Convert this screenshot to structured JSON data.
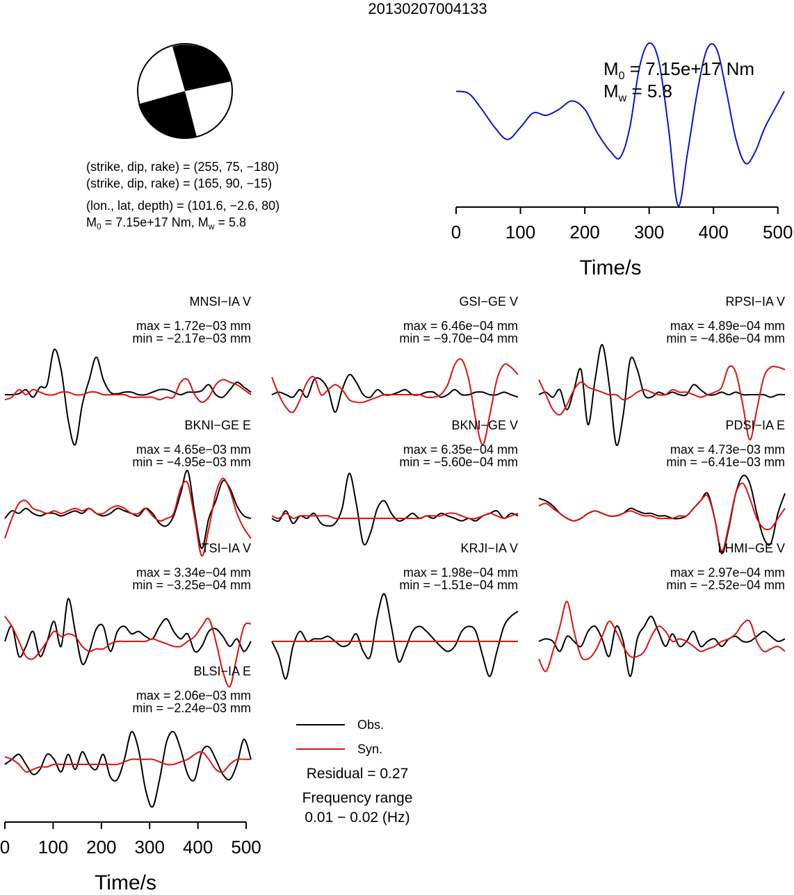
{
  "title": "20130207004133",
  "mechanism": {
    "planes": [
      "(strike, dip, rake) = (255, 75, −180)",
      "(strike, dip, rake) = (165, 90, −15)"
    ],
    "location": "(lon., lat, depth) = (101.6, −2.6, 80)",
    "moment_prefix": "M",
    "moment_sub": "0",
    "moment_rest": " = 7.15e+17 Nm, M",
    "mw_sub": "w",
    "mw_rest": " = 5.8"
  },
  "stf": {
    "m0_symbol": "M",
    "m0_sub": "0",
    "m0_value": " = 7.15e+17 Nm",
    "mw_symbol": "M",
    "mw_sub": "w",
    "mw_value": " = 5.8",
    "color": "#1010d0"
  },
  "legend": {
    "obs_label": "Obs.",
    "syn_label": "Syn.",
    "residual": "Residual = 0.27",
    "freq_title": "Frequency range",
    "freq_value": "0.01 − 0.02 (Hz)"
  },
  "colors": {
    "obs": "#000000",
    "syn": "#dd1111"
  },
  "chart_data": [
    {
      "type": "line",
      "name": "source-time-function",
      "xlabel": "Time/s",
      "ticks": [
        0,
        100,
        200,
        300,
        400,
        500
      ],
      "xlim": [
        0,
        510
      ],
      "x": [
        0,
        20,
        40,
        60,
        80,
        100,
        120,
        140,
        160,
        180,
        200,
        220,
        240,
        255,
        270,
        285,
        300,
        315,
        330,
        345,
        360,
        375,
        390,
        405,
        420,
        435,
        450,
        465,
        480,
        500,
        510
      ],
      "values": [
        0.6,
        0.58,
        0.45,
        0.3,
        0.2,
        0.3,
        0.42,
        0.4,
        0.45,
        0.52,
        0.45,
        0.25,
        0.1,
        0.05,
        0.3,
        0.8,
        1.0,
        0.85,
        0.3,
        -0.35,
        0.1,
        0.6,
        0.95,
        0.95,
        0.6,
        0.2,
        0.0,
        0.1,
        0.3,
        0.5,
        0.6
      ]
    },
    {
      "type": "line",
      "name": "waveform-fits",
      "xlabel": "Time/s",
      "ticks": [
        0,
        100,
        200,
        300,
        400,
        500
      ],
      "xlim": [
        0,
        510
      ],
      "stations": [
        {
          "id": "MNSI−IA V",
          "max": "max = 1.72e−03 mm",
          "min": "min = −2.17e−03 mm",
          "obs": [
            0,
            0,
            0.02,
            0.1,
            -0.05,
            0.15,
            0.2,
            0.9,
            0.5,
            -0.5,
            -1.0,
            -0.2,
            0.3,
            0.75,
            0.3,
            0.05,
            0.02,
            0.05,
            0.05,
            0.0,
            0.0,
            0.05,
            0.1,
            0.1,
            0.05,
            0.0,
            0.05,
            0.05,
            0.08,
            0.2,
            0.0,
            -0.05,
            0.1,
            0.25,
            0.15,
            0.05
          ],
          "syn": [
            -0.1,
            -0.05,
            0.1,
            0.0,
            0.1,
            0.05,
            0.0,
            0.0,
            0.05,
            0.05,
            0.0,
            0.0,
            0.05,
            0.05,
            0.0,
            0.0,
            0.0,
            0.0,
            -0.05,
            -0.05,
            -0.05,
            -0.05,
            -0.1,
            -0.05,
            -0.05,
            0.25,
            0.3,
            0.0,
            -0.15,
            -0.05,
            0.2,
            0.3,
            0.25,
            0.2,
            0.1,
            0.0
          ]
        },
        {
          "id": "GSI−GE V",
          "max": "max = 6.46e−04 mm",
          "min": "min = −9.70e−04 mm",
          "obs": [
            0,
            0.05,
            0.0,
            -0.05,
            0.1,
            -0.05,
            0.3,
            0.3,
            0.1,
            -0.35,
            0.1,
            0.4,
            0.25,
            0.0,
            -0.05,
            0.1,
            0.0,
            0.0,
            0.05,
            0.1,
            0.0,
            0.0,
            0.05,
            0.05,
            -0.05,
            0.0,
            0.1,
            0.0,
            0.0,
            0.05,
            0.05,
            0.0,
            0.0,
            0.05,
            0.0,
            -0.05
          ],
          "syn": [
            0.35,
            0.0,
            -0.25,
            -0.35,
            -0.1,
            0.25,
            0.35,
            0.0,
            0.1,
            0.2,
            0.1,
            -0.1,
            -0.15,
            -0.15,
            -0.1,
            -0.05,
            0.0,
            0.0,
            0.0,
            0.0,
            0.0,
            0.0,
            -0.05,
            -0.05,
            0.0,
            0.2,
            0.6,
            0.7,
            0.3,
            -0.5,
            -1.0,
            -0.4,
            0.3,
            0.6,
            0.55,
            0.4
          ]
        },
        {
          "id": "RPSI−IA V",
          "max": "max = 4.89e−04 mm",
          "min": "min = −4.86e−04 mm",
          "obs": [
            0,
            0.05,
            -0.05,
            0.1,
            -0.3,
            0.1,
            0.5,
            -0.6,
            0.3,
            1.0,
            0.2,
            -1.0,
            -0.4,
            0.7,
            0.5,
            0.0,
            -0.05,
            0.05,
            0.0,
            0.05,
            0.0,
            0.0,
            0.2,
            0.1,
            0.0,
            0.0,
            0.05,
            0.0,
            0.05,
            0.0,
            0.0,
            0.0,
            0.0,
            -0.05,
            0.0,
            0.0
          ],
          "syn": [
            0.3,
            0.0,
            -0.3,
            -0.4,
            -0.2,
            0.1,
            0.25,
            0.15,
            0.1,
            0.05,
            0.0,
            0.0,
            -0.1,
            -0.05,
            0.05,
            0.1,
            0.05,
            0.0,
            0.0,
            0.1,
            0.05,
            0.05,
            0.0,
            -0.05,
            0.0,
            0.05,
            0.15,
            0.55,
            0.45,
            -0.2,
            -0.9,
            -0.3,
            0.35,
            0.55,
            0.55,
            0.5
          ]
        },
        {
          "id": "BKNI−GE E",
          "max": "max = 4.65e−03 mm",
          "min": "min = −4.95e−03 mm",
          "obs": [
            0,
            0.15,
            0.1,
            0.2,
            0.1,
            0.05,
            0.1,
            0.1,
            0.05,
            0.1,
            0.15,
            0.1,
            0.2,
            0.1,
            0.05,
            0.1,
            0.2,
            0.15,
            0.1,
            0.05,
            0.2,
            0.1,
            -0.1,
            -0.15,
            0.05,
            0.5,
            0.95,
            0.1,
            -0.6,
            0.0,
            0.35,
            0.75,
            0.6,
            0.25,
            0.05,
            0.0
          ],
          "syn": [
            -0.4,
            0.0,
            0.3,
            0.35,
            0.2,
            0.15,
            0.1,
            0.15,
            0.1,
            0.15,
            0.2,
            0.15,
            0.2,
            0.1,
            0.1,
            0.2,
            0.25,
            0.2,
            0.1,
            0.1,
            0.2,
            0.05,
            -0.05,
            0.0,
            0.1,
            0.6,
            0.7,
            0.0,
            -0.75,
            -0.2,
            0.5,
            0.8,
            0.55,
            0.1,
            -0.2,
            -0.4
          ]
        },
        {
          "id": "BKNI−GE V",
          "max": "max = 6.35e−04 mm",
          "min": "min = −5.60e−04 mm",
          "obs": [
            0,
            -0.05,
            0.15,
            -0.1,
            0.05,
            0.0,
            0.1,
            -0.1,
            -0.15,
            -0.1,
            0.2,
            0.9,
            0.3,
            -0.5,
            -0.3,
            0.2,
            0.35,
            0.1,
            -0.05,
            0.0,
            0.1,
            0.0,
            0.05,
            0.0,
            0.1,
            0.05,
            0.0,
            -0.05,
            0.0,
            -0.05,
            0.05,
            0.1,
            0.15,
            0.0,
            0.1,
            0.05
          ],
          "syn": [
            0.05,
            0.0,
            0.1,
            0.0,
            0.05,
            0.05,
            0.05,
            0.05,
            0.05,
            0.0,
            0.0,
            0.0,
            0.0,
            0.0,
            0.0,
            0.0,
            0.0,
            0.0,
            0.0,
            0.0,
            0.0,
            0.0,
            0.05,
            0.05,
            0.05,
            0.1,
            0.1,
            0.05,
            0.0,
            0.0,
            0.05,
            0.1,
            0.05,
            0.0,
            0.05,
            0.1
          ]
        },
        {
          "id": "PDSI−IA E",
          "max": "max = 4.73e−03 mm",
          "min": "min = −6.41e−03 mm",
          "obs": [
            0.4,
            0.35,
            0.25,
            0.1,
            0.0,
            -0.05,
            0.0,
            0.1,
            0.15,
            0.1,
            0.05,
            0.05,
            0.1,
            0.2,
            0.15,
            0.1,
            0.1,
            0.05,
            0.05,
            0.0,
            0.0,
            0.05,
            0.2,
            0.35,
            0.5,
            0.0,
            -0.7,
            -0.2,
            0.5,
            0.85,
            0.7,
            0.1,
            -0.4,
            -0.5,
            0.1,
            0.5
          ],
          "syn": [
            0.25,
            0.3,
            0.2,
            0.1,
            0.0,
            -0.05,
            0.0,
            0.1,
            0.15,
            0.1,
            0.05,
            0.05,
            0.1,
            0.15,
            0.1,
            0.05,
            0.05,
            0.0,
            0.0,
            0.0,
            0.05,
            0.05,
            0.2,
            0.35,
            0.45,
            0.0,
            -0.65,
            -0.15,
            0.5,
            0.7,
            0.4,
            0.0,
            -0.2,
            -0.2,
            0.0,
            0.2
          ]
        },
        {
          "id": "TSI−IA V",
          "max": "max = 3.34e−04 mm",
          "min": "min = −3.25e−04 mm",
          "obs": [
            0,
            0.3,
            -0.3,
            -0.1,
            0.2,
            -0.3,
            0.0,
            0.4,
            -0.1,
            0.85,
            0.2,
            -0.45,
            -0.2,
            0.25,
            0.3,
            -0.2,
            0.2,
            0.3,
            0.15,
            0.2,
            0.1,
            0.05,
            0.3,
            0.45,
            0.2,
            0.05,
            0.15,
            -0.2,
            -0.1,
            0.2,
            0.25,
            0.1,
            -0.1,
            0.05,
            -0.2,
            0.0
          ],
          "syn": [
            0.5,
            0.3,
            0.0,
            -0.3,
            -0.35,
            -0.2,
            0.0,
            0.2,
            0.1,
            0.15,
            0.1,
            -0.1,
            -0.2,
            -0.15,
            -0.15,
            -0.05,
            0.0,
            0.0,
            0.0,
            0.0,
            0.0,
            0.05,
            0.0,
            -0.05,
            -0.1,
            -0.1,
            0.0,
            0.1,
            0.3,
            0.45,
            0.0,
            -0.6,
            -0.9,
            -0.3,
            0.3,
            0.35
          ]
        },
        {
          "id": "KRJI−IA V",
          "max": "max = 1.98e−04 mm",
          "min": "min = −1.51e−04 mm",
          "obs": [
            0,
            -0.3,
            -0.75,
            -0.1,
            0.2,
            0.0,
            0.05,
            0.05,
            0.1,
            0.0,
            -0.1,
            -0.05,
            0.15,
            -0.2,
            -0.3,
            0.5,
            0.95,
            0.3,
            -0.4,
            -0.15,
            0.2,
            0.3,
            0.2,
            0.05,
            -0.1,
            -0.2,
            -0.1,
            0.2,
            0.3,
            0.2,
            -0.3,
            -0.7,
            -0.2,
            0.3,
            0.5,
            0.6
          ],
          "syn": [
            0,
            0,
            0,
            0,
            0,
            0,
            0,
            0,
            0,
            0,
            0,
            0,
            0,
            0,
            0,
            0,
            0,
            0,
            0,
            0,
            0,
            0,
            0,
            0,
            0,
            0,
            0,
            0,
            0,
            0,
            0,
            0,
            0,
            0,
            0,
            0
          ]
        },
        {
          "id": "LHMI−GE V",
          "max": "max = 2.97e−04 mm",
          "min": "min = −2.52e−04 mm",
          "obs": [
            0,
            0.05,
            0.0,
            -0.2,
            0.1,
            0.0,
            -0.1,
            0.2,
            0.3,
            0.05,
            -0.3,
            0.3,
            0.0,
            -0.7,
            0.05,
            0.3,
            0.5,
            0.2,
            -0.1,
            0.15,
            -0.1,
            0.0,
            0.2,
            -0.1,
            0.0,
            0.05,
            -0.1,
            0.05,
            0.1,
            0.0,
            0.0,
            0.1,
            0.2,
            0.1,
            0.0,
            0.05
          ],
          "syn": [
            -0.35,
            -0.6,
            -0.2,
            0.3,
            0.8,
            0.2,
            -0.3,
            -0.35,
            -0.2,
            0.1,
            0.4,
            0.2,
            -0.1,
            -0.3,
            -0.3,
            -0.2,
            0.1,
            0.3,
            0.2,
            0.0,
            0.05,
            0.0,
            -0.1,
            -0.2,
            -0.15,
            -0.1,
            0.0,
            0.05,
            0.15,
            0.35,
            0.4,
            0.0,
            -0.2,
            -0.15,
            -0.1,
            -0.2
          ]
        },
        {
          "id": "BLSI−IA E",
          "max": "max = 2.06e−03 mm",
          "min": "min = −2.24e−03 mm",
          "obs": [
            0,
            0.1,
            0.2,
            0.0,
            -0.2,
            -0.1,
            0.2,
            0.1,
            -0.15,
            0.2,
            -0.1,
            0.25,
            0.0,
            -0.1,
            0.2,
            -0.25,
            -0.3,
            0.1,
            0.65,
            0.3,
            -0.5,
            -0.85,
            -0.3,
            0.45,
            0.65,
            0.3,
            -0.2,
            -0.3,
            0.25,
            0.35,
            0.1,
            -0.2,
            -0.3,
            0.0,
            0.5,
            0.1
          ],
          "syn": [
            0.15,
            0.1,
            0.0,
            -0.15,
            -0.1,
            -0.05,
            -0.05,
            0.0,
            0.0,
            0.0,
            0.0,
            0.0,
            0.0,
            0.0,
            0.0,
            0.0,
            0.0,
            0.05,
            0.1,
            0.1,
            0.1,
            0.1,
            0.05,
            0.0,
            0.0,
            0.05,
            0.1,
            0.2,
            0.25,
            0.1,
            -0.1,
            -0.15,
            0.0,
            0.1,
            0.1,
            0.1
          ]
        }
      ]
    }
  ]
}
